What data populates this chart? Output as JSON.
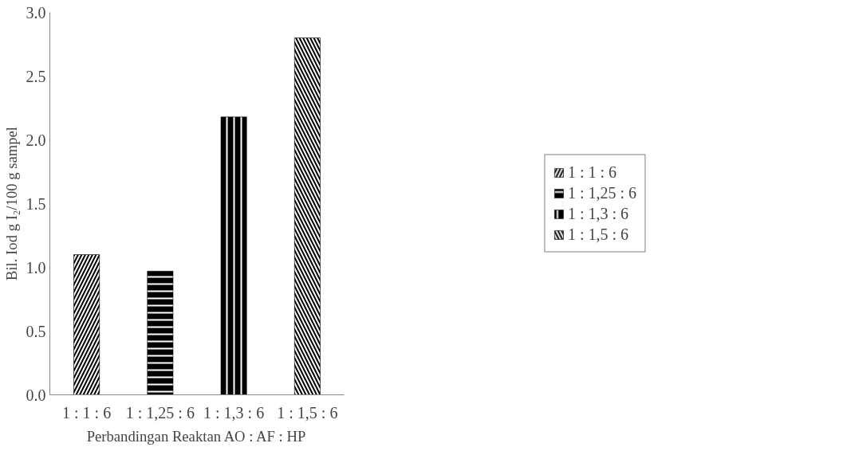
{
  "chart_data": {
    "type": "bar",
    "xlabel": "Perbandingan Reaktan AO : AF : HP",
    "ylabel": "Bil. Iod g I₂/100 g sampel",
    "categories": [
      "1 : 1 : 6",
      "1 : 1,25 : 6",
      "1 : 1,3 : 6",
      "1 : 1,5 : 6"
    ],
    "series": [
      {
        "name": "1 : 1 : 6",
        "color": "#000000",
        "values": [
          1.1,
          null,
          null,
          null
        ]
      },
      {
        "name": "1 : 1,25 : 6",
        "color": "#000000",
        "values": [
          null,
          0.97,
          null,
          null
        ]
      },
      {
        "name": "1 : 1,3 : 6",
        "color": "#000000",
        "values": [
          null,
          null,
          2.18,
          null
        ]
      },
      {
        "name": "1 : 1,5 : 6",
        "color": "#000000",
        "values": [
          null,
          null,
          null,
          2.8
        ]
      }
    ],
    "ylim": [
      0,
      3.0
    ],
    "yticks": [
      {
        "value": 0,
        "label": "0.0"
      },
      {
        "value": 0.5,
        "label": "0.5"
      },
      {
        "value": 1,
        "label": "1.0"
      },
      {
        "value": 1.5,
        "label": "1.5"
      },
      {
        "value": 2,
        "label": "2.0"
      },
      {
        "value": 2.5,
        "label": "2.5"
      },
      {
        "value": 3,
        "label": "3.0"
      }
    ],
    "grid": false,
    "legend": "right"
  }
}
